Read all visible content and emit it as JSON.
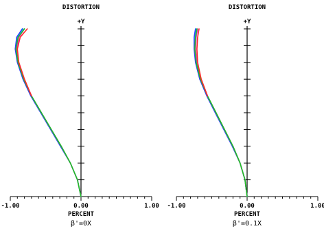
{
  "chart_data": [
    {
      "type": "line",
      "title": "DISTORTION",
      "ylabel": "+Y",
      "xlabel": "PERCENT",
      "caption": "β'=0X",
      "xlim": [
        -1,
        1
      ],
      "ylim": [
        0,
        1
      ],
      "x_tick_labels": [
        "-1.00",
        "0.00",
        "1.00"
      ],
      "grid": false,
      "series": [
        {
          "color": "#00e8e8",
          "x": [
            0.0,
            -0.05,
            -0.15,
            -0.28,
            -0.42,
            -0.56,
            -0.7,
            -0.81,
            -0.89,
            -0.92,
            -0.9,
            -0.82
          ],
          "y": [
            0.0,
            0.1,
            0.2,
            0.3,
            0.4,
            0.5,
            0.6,
            0.7,
            0.8,
            0.88,
            0.95,
            1.0
          ]
        },
        {
          "color": "#2a3cff",
          "x": [
            0.0,
            -0.05,
            -0.15,
            -0.29,
            -0.43,
            -0.57,
            -0.71,
            -0.82,
            -0.9,
            -0.93,
            -0.91,
            -0.83
          ],
          "y": [
            0.0,
            0.1,
            0.2,
            0.3,
            0.4,
            0.5,
            0.6,
            0.7,
            0.8,
            0.88,
            0.95,
            1.0
          ]
        },
        {
          "color": "#e030d0",
          "x": [
            0.0,
            -0.05,
            -0.15,
            -0.28,
            -0.42,
            -0.56,
            -0.7,
            -0.8,
            -0.88,
            -0.91,
            -0.88,
            -0.8
          ],
          "y": [
            0.0,
            0.1,
            0.2,
            0.3,
            0.4,
            0.5,
            0.6,
            0.7,
            0.8,
            0.88,
            0.95,
            1.0
          ]
        },
        {
          "color": "#20c020",
          "x": [
            0.0,
            -0.05,
            -0.15,
            -0.28,
            -0.42,
            -0.56,
            -0.7,
            -0.81,
            -0.89,
            -0.92,
            -0.89,
            -0.8
          ],
          "y": [
            0.0,
            0.1,
            0.2,
            0.3,
            0.4,
            0.5,
            0.6,
            0.7,
            0.8,
            0.88,
            0.95,
            1.0
          ]
        },
        {
          "color": "#ff2a2a",
          "x": [
            -0.7,
            -0.8,
            -0.88,
            -0.9,
            -0.86,
            -0.76
          ],
          "y": [
            0.6,
            0.7,
            0.8,
            0.88,
            0.95,
            1.0
          ]
        }
      ]
    },
    {
      "type": "line",
      "title": "DISTORTION",
      "ylabel": "+Y",
      "xlabel": "PERCENT",
      "caption": "β'=0.1X",
      "xlim": [
        -1,
        1
      ],
      "ylim": [
        0,
        1
      ],
      "x_tick_labels": [
        "-1.00",
        "0.00",
        "1.00"
      ],
      "grid": false,
      "series": [
        {
          "color": "#00e8e8",
          "x": [
            0.0,
            -0.03,
            -0.1,
            -0.2,
            -0.32,
            -0.44,
            -0.56,
            -0.66,
            -0.72,
            -0.74,
            -0.74,
            -0.72
          ],
          "y": [
            0.0,
            0.1,
            0.2,
            0.3,
            0.4,
            0.5,
            0.6,
            0.7,
            0.8,
            0.88,
            0.95,
            1.0
          ]
        },
        {
          "color": "#2a3cff",
          "x": [
            0.0,
            -0.03,
            -0.1,
            -0.21,
            -0.33,
            -0.45,
            -0.57,
            -0.67,
            -0.73,
            -0.75,
            -0.75,
            -0.73
          ],
          "y": [
            0.0,
            0.1,
            0.2,
            0.3,
            0.4,
            0.5,
            0.6,
            0.7,
            0.8,
            0.88,
            0.95,
            1.0
          ]
        },
        {
          "color": "#e030d0",
          "x": [
            0.0,
            -0.03,
            -0.1,
            -0.2,
            -0.32,
            -0.44,
            -0.56,
            -0.65,
            -0.71,
            -0.73,
            -0.72,
            -0.7
          ],
          "y": [
            0.0,
            0.1,
            0.2,
            0.3,
            0.4,
            0.5,
            0.6,
            0.7,
            0.8,
            0.88,
            0.95,
            1.0
          ]
        },
        {
          "color": "#20c020",
          "x": [
            0.0,
            -0.03,
            -0.1,
            -0.2,
            -0.32,
            -0.44,
            -0.56,
            -0.66,
            -0.72,
            -0.74,
            -0.73,
            -0.71
          ],
          "y": [
            0.0,
            0.1,
            0.2,
            0.3,
            0.4,
            0.5,
            0.6,
            0.7,
            0.8,
            0.88,
            0.95,
            1.0
          ]
        },
        {
          "color": "#ff2a2a",
          "x": [
            -0.56,
            -0.65,
            -0.7,
            -0.71,
            -0.7,
            -0.68
          ],
          "y": [
            0.6,
            0.7,
            0.8,
            0.88,
            0.95,
            1.0
          ]
        }
      ]
    }
  ]
}
